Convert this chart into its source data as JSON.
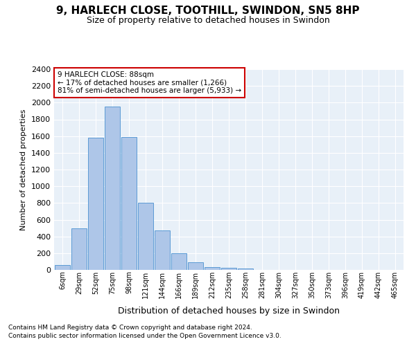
{
  "title": "9, HARLECH CLOSE, TOOTHILL, SWINDON, SN5 8HP",
  "subtitle": "Size of property relative to detached houses in Swindon",
  "xlabel": "Distribution of detached houses by size in Swindon",
  "ylabel": "Number of detached properties",
  "categories": [
    "6sqm",
    "29sqm",
    "52sqm",
    "75sqm",
    "98sqm",
    "121sqm",
    "144sqm",
    "166sqm",
    "189sqm",
    "212sqm",
    "235sqm",
    "258sqm",
    "281sqm",
    "304sqm",
    "327sqm",
    "350sqm",
    "373sqm",
    "396sqm",
    "419sqm",
    "442sqm",
    "465sqm"
  ],
  "bar_heights": [
    60,
    500,
    1580,
    1950,
    1590,
    800,
    475,
    195,
    90,
    35,
    28,
    20,
    0,
    0,
    0,
    0,
    0,
    0,
    0,
    0,
    0
  ],
  "bar_color": "#aec6e8",
  "bar_edge_color": "#5b9bd5",
  "background_color": "#e8f0f8",
  "annotation_text": "9 HARLECH CLOSE: 88sqm\n← 17% of detached houses are smaller (1,266)\n81% of semi-detached houses are larger (5,933) →",
  "annotation_box_color": "#ffffff",
  "annotation_box_edge": "#cc0000",
  "ylim": [
    0,
    2400
  ],
  "yticks": [
    0,
    200,
    400,
    600,
    800,
    1000,
    1200,
    1400,
    1600,
    1800,
    2000,
    2200,
    2400
  ],
  "footnote1": "Contains HM Land Registry data © Crown copyright and database right 2024.",
  "footnote2": "Contains public sector information licensed under the Open Government Licence v3.0."
}
